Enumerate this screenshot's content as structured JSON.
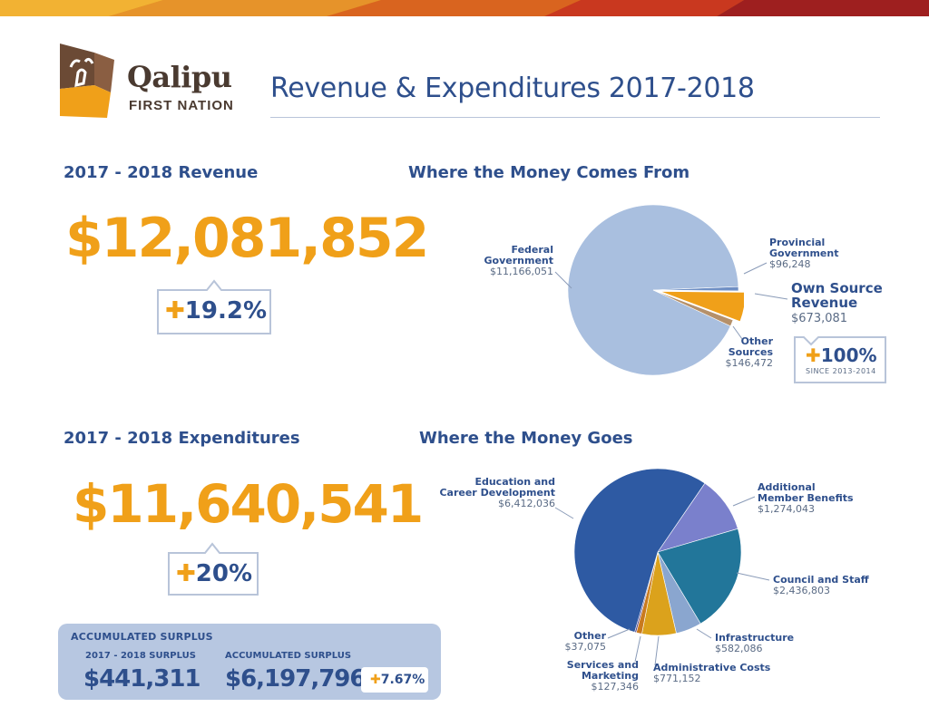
{
  "logo": {
    "name": "Qalipu",
    "subtitle": "FIRST NATION"
  },
  "page_title": "Revenue & Expenditures 2017-2018",
  "revenue": {
    "heading": "2017 - 2018 Revenue",
    "total": "$12,081,852",
    "change": "19.2%"
  },
  "expenditures": {
    "heading": "2017 - 2018 Expenditures",
    "total": "$11,640,541",
    "change": "20%"
  },
  "surplus": {
    "title": "ACCUMULATED SURPLUS",
    "year_label": "2017 - 2018 SURPLUS",
    "year_value": "$441,311",
    "acc_label": "ACCUMULATED SURPLUS",
    "acc_value": "$6,197,796",
    "change": "7.67%"
  },
  "own_source_badge": {
    "value": "100%",
    "since": "SINCE 2013-2014"
  },
  "colors": {
    "orange": "#f0a019",
    "navy": "#2e4f8c",
    "light_blue": "#a9bfdf",
    "banner_red": "#c0392b"
  },
  "chart_data": [
    {
      "type": "pie",
      "title": "Where the Money Comes From",
      "slices": [
        {
          "name": "Federal Government",
          "label_line1": "Federal",
          "label_line2": "Government",
          "value_label": "$11,166,051",
          "value": 11166051,
          "color": "#a9bfdf"
        },
        {
          "name": "Provincial Government",
          "label_line1": "Provincial",
          "label_line2": "Government",
          "value_label": "$96,248",
          "value": 96248,
          "color": "#6f8fc4"
        },
        {
          "name": "Own Source Revenue",
          "label_line1": "Own Source",
          "label_line2": "Revenue",
          "value_label": "$673,081",
          "value": 673081,
          "color": "#f0a019"
        },
        {
          "name": "Other Sources",
          "label_line1": "Other",
          "label_line2": "Sources",
          "value_label": "$146,472",
          "value": 146472,
          "color": "#b5906a"
        }
      ]
    },
    {
      "type": "pie",
      "title": "Where the Money Goes",
      "slices": [
        {
          "name": "Additional Member Benefits",
          "label_line1": "Additional",
          "label_line2": "Member Benefits",
          "value_label": "$1,274,043",
          "value": 1274043,
          "color": "#7a80cc"
        },
        {
          "name": "Council and Staff",
          "label_line1": "Council and Staff",
          "label_line2": "",
          "value_label": "$2,436,803",
          "value": 2436803,
          "color": "#22769a"
        },
        {
          "name": "Infrastructure",
          "label_line1": "Infrastructure",
          "label_line2": "",
          "value_label": "$582,086",
          "value": 582086,
          "color": "#8aa6cf"
        },
        {
          "name": "Administrative Costs",
          "label_line1": "Administrative Costs",
          "label_line2": "",
          "value_label": "$771,152",
          "value": 771152,
          "color": "#dba21c"
        },
        {
          "name": "Services and Marketing",
          "label_line1": "Services and Marketing",
          "label_line2": "",
          "value_label": "$127,346",
          "value": 127346,
          "color": "#c97a1e"
        },
        {
          "name": "Other",
          "label_line1": "Other",
          "label_line2": "",
          "value_label": "$37,075",
          "value": 37075,
          "color": "#5b4a8a"
        },
        {
          "name": "Education and Career Development",
          "label_line1": "Education and",
          "label_line2": "Career Development",
          "value_label": "$6,412,036",
          "value": 6412036,
          "color": "#2e5aa3"
        }
      ]
    }
  ]
}
